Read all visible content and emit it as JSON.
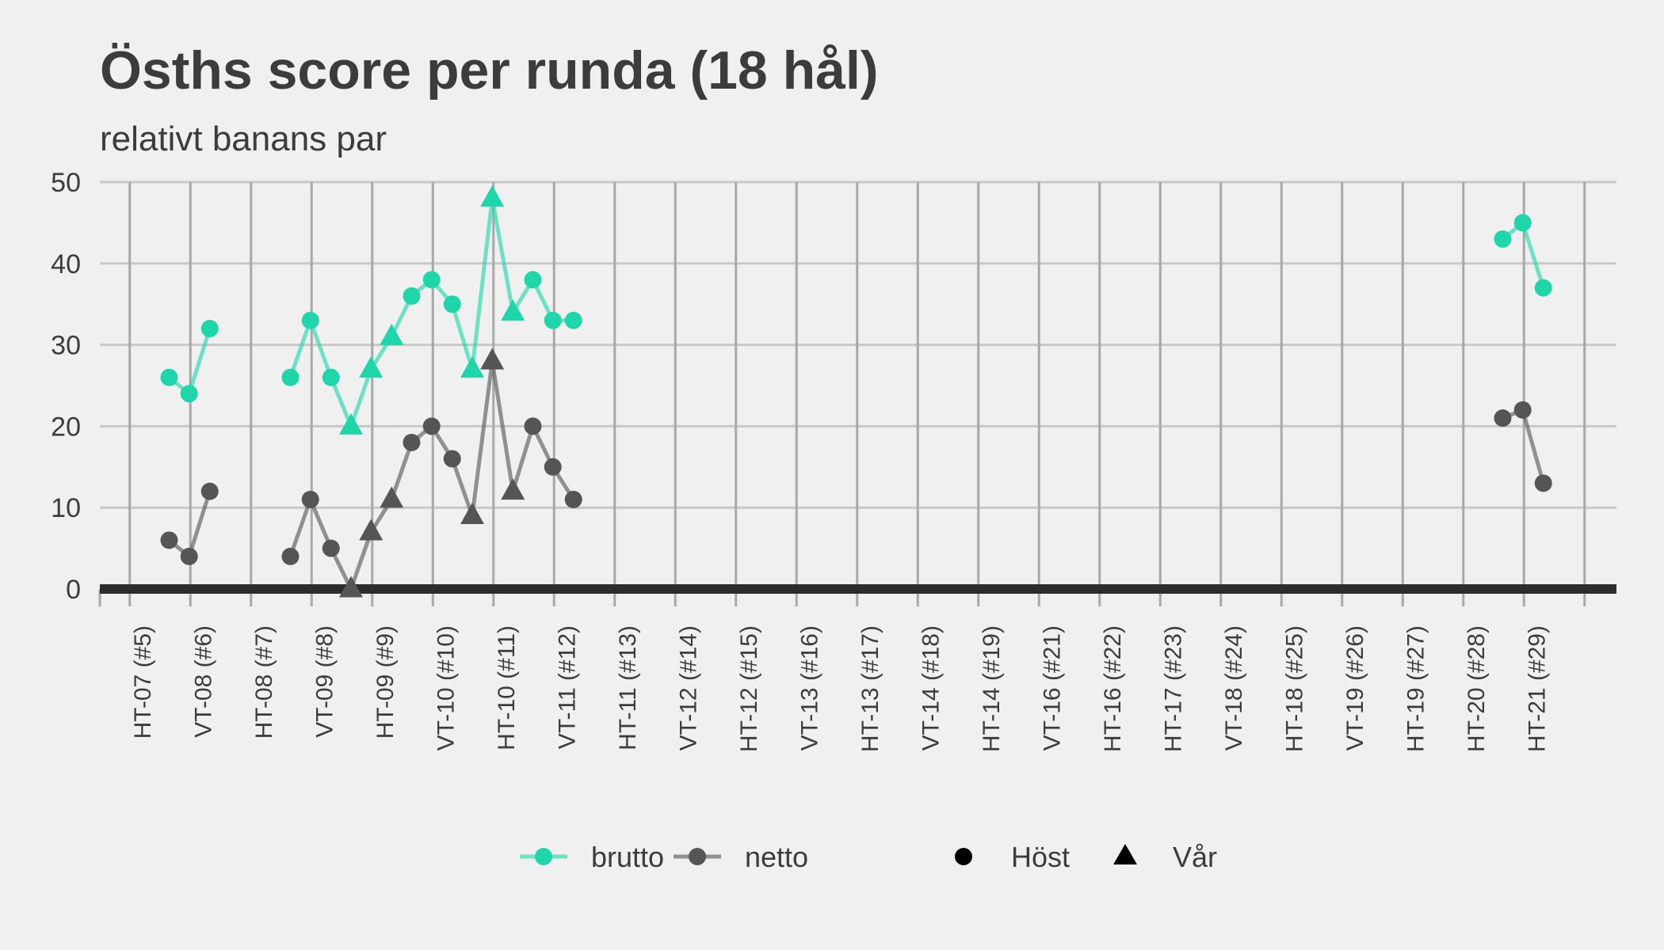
{
  "chart_data": {
    "type": "line",
    "title": "Ösths score per runda (18 hål)",
    "subtitle": "relativt banans par",
    "xlabel": "",
    "ylabel": "",
    "ylim": [
      0,
      50
    ],
    "y_ticks": [
      0,
      10,
      20,
      30,
      40,
      50
    ],
    "x_ticks": [
      "HT-07 (#5)",
      "VT-08 (#6)",
      "HT-08 (#7)",
      "VT-09 (#8)",
      "HT-09 (#9)",
      "VT-10 (#10)",
      "HT-10 (#11)",
      "VT-11 (#12)",
      "HT-11 (#13)",
      "VT-12 (#14)",
      "HT-12 (#15)",
      "VT-13 (#16)",
      "HT-13 (#17)",
      "VT-14 (#18)",
      "HT-14 (#19)",
      "VT-16 (#21)",
      "HT-16 (#22)",
      "HT-17 (#23)",
      "VT-18 (#24)",
      "HT-18 (#25)",
      "VT-19 (#26)",
      "HT-19 (#27)",
      "HT-20 (#28)",
      "HT-21 (#29)"
    ],
    "grid": true,
    "legend_position": "bottom",
    "colors": {
      "brutto": "#1ed6aa",
      "netto": "#555555",
      "zero_line": "#2d2d2d",
      "grid": "#c8c8c8"
    },
    "series": [
      {
        "name": "brutto",
        "segments": [
          [
            {
              "x": 0.15,
              "y": 26,
              "shape": "Höst"
            },
            {
              "x": 0.48,
              "y": 24,
              "shape": "Höst"
            },
            {
              "x": 0.82,
              "y": 32,
              "shape": "Höst"
            }
          ],
          [
            {
              "x": 2.15,
              "y": 26,
              "shape": "Höst"
            },
            {
              "x": 2.48,
              "y": 33,
              "shape": "Höst"
            },
            {
              "x": 2.82,
              "y": 26,
              "shape": "Höst"
            },
            {
              "x": 3.15,
              "y": 20,
              "shape": "Vår"
            },
            {
              "x": 3.48,
              "y": 27,
              "shape": "Vår"
            },
            {
              "x": 3.82,
              "y": 31,
              "shape": "Vår"
            },
            {
              "x": 4.15,
              "y": 36,
              "shape": "Höst"
            },
            {
              "x": 4.48,
              "y": 38,
              "shape": "Höst"
            },
            {
              "x": 4.82,
              "y": 35,
              "shape": "Höst"
            },
            {
              "x": 5.15,
              "y": 27,
              "shape": "Vår"
            },
            {
              "x": 5.48,
              "y": 48,
              "shape": "Vår"
            },
            {
              "x": 5.82,
              "y": 34,
              "shape": "Vår"
            },
            {
              "x": 6.15,
              "y": 38,
              "shape": "Höst"
            },
            {
              "x": 6.48,
              "y": 33,
              "shape": "Höst"
            },
            {
              "x": 6.82,
              "y": 33,
              "shape": "Höst"
            }
          ],
          [
            {
              "x": 22.15,
              "y": 43,
              "shape": "Höst"
            },
            {
              "x": 22.48,
              "y": 45,
              "shape": "Höst"
            },
            {
              "x": 22.82,
              "y": 37,
              "shape": "Höst"
            }
          ]
        ]
      },
      {
        "name": "netto",
        "segments": [
          [
            {
              "x": 0.15,
              "y": 6,
              "shape": "Höst"
            },
            {
              "x": 0.48,
              "y": 4,
              "shape": "Höst"
            },
            {
              "x": 0.82,
              "y": 12,
              "shape": "Höst"
            }
          ],
          [
            {
              "x": 2.15,
              "y": 4,
              "shape": "Höst"
            },
            {
              "x": 2.48,
              "y": 11,
              "shape": "Höst"
            },
            {
              "x": 2.82,
              "y": 5,
              "shape": "Höst"
            },
            {
              "x": 3.15,
              "y": 0,
              "shape": "Vår"
            },
            {
              "x": 3.48,
              "y": 7,
              "shape": "Vår"
            },
            {
              "x": 3.82,
              "y": 11,
              "shape": "Vår"
            },
            {
              "x": 4.15,
              "y": 18,
              "shape": "Höst"
            },
            {
              "x": 4.48,
              "y": 20,
              "shape": "Höst"
            },
            {
              "x": 4.82,
              "y": 16,
              "shape": "Höst"
            },
            {
              "x": 5.15,
              "y": 9,
              "shape": "Vår"
            },
            {
              "x": 5.48,
              "y": 28,
              "shape": "Vår"
            },
            {
              "x": 5.82,
              "y": 12,
              "shape": "Vår"
            },
            {
              "x": 6.15,
              "y": 20,
              "shape": "Höst"
            },
            {
              "x": 6.48,
              "y": 15,
              "shape": "Höst"
            },
            {
              "x": 6.82,
              "y": 11,
              "shape": "Höst"
            }
          ],
          [
            {
              "x": 22.15,
              "y": 21,
              "shape": "Höst"
            },
            {
              "x": 22.48,
              "y": 22,
              "shape": "Höst"
            },
            {
              "x": 22.82,
              "y": 13,
              "shape": "Höst"
            }
          ]
        ]
      }
    ],
    "legend": {
      "series": [
        "brutto",
        "netto"
      ],
      "shapes": [
        {
          "label": "Höst",
          "shape": "circle"
        },
        {
          "label": "Vår",
          "shape": "triangle"
        }
      ]
    }
  }
}
